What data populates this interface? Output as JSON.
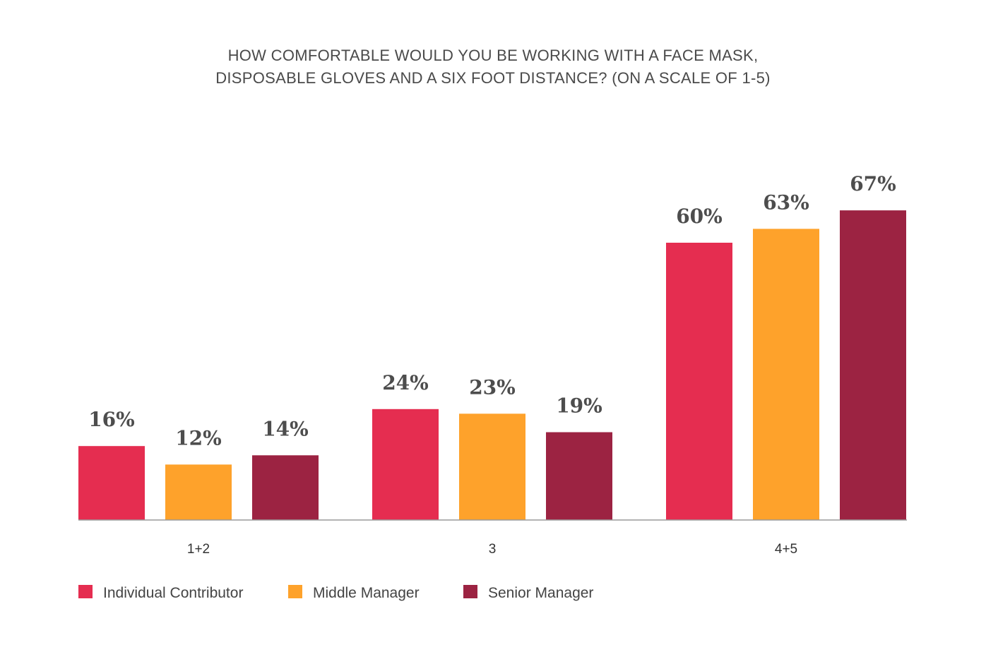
{
  "chart_data": {
    "type": "bar",
    "title": [
      "HOW COMFORTABLE WOULD YOU BE WORKING WITH A FACE MASK,",
      "DISPOSABLE GLOVES AND A SIX FOOT DISTANCE? (ON A SCALE OF 1-5)"
    ],
    "categories": [
      "1+2",
      "3",
      "4+5"
    ],
    "series": [
      {
        "name": "Individual Contributor",
        "color": "#e52d50",
        "values": [
          16,
          24,
          60
        ]
      },
      {
        "name": "Middle Manager",
        "color": "#fea22b",
        "values": [
          12,
          23,
          63
        ]
      },
      {
        "name": "Senior Manager",
        "color": "#9c2342",
        "values": [
          14,
          19,
          67
        ]
      }
    ],
    "value_suffix": "%",
    "ylim": [
      0,
      70
    ],
    "grid": false,
    "legend_position": "bottom-left",
    "axis_color": "#9a9a9a"
  }
}
